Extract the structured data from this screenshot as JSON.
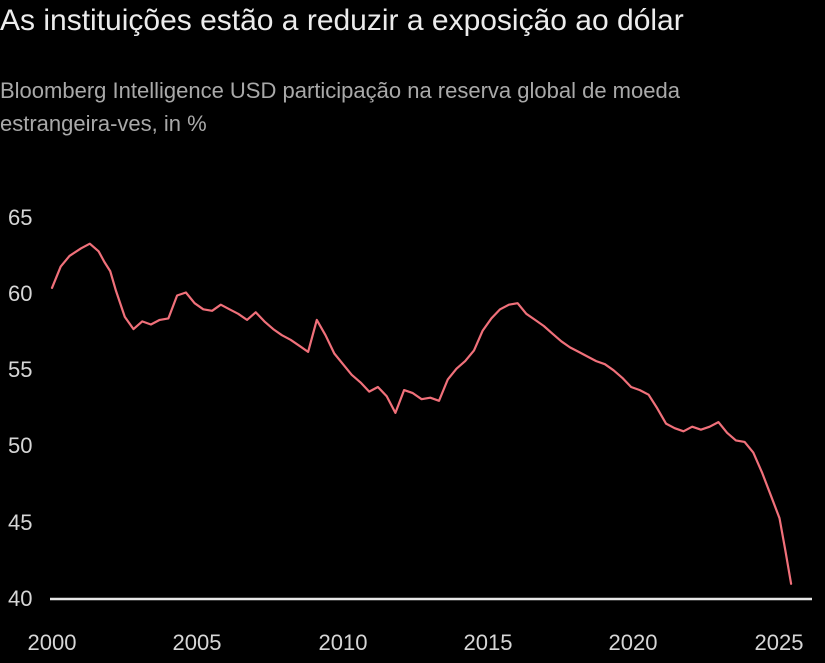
{
  "title": "As instituições estão a reduzir a exposição ao dólar",
  "subtitle": "Bloomberg Intelligence USD participação na reserva global de moeda estrangeira-ves, in %",
  "colors": {
    "background": "#000000",
    "line": "#f0707a",
    "baseline": "#e6e6e6",
    "text": "#d6d6d6"
  },
  "chart_data": {
    "type": "line",
    "title": "As instituições estão a reduzir a exposição ao dólar",
    "subtitle": "Bloomberg Intelligence USD participação na reserva global de moeda estrangeira-ves, in %",
    "xlabel": "",
    "ylabel": "",
    "xlim": [
      2000,
      2025.5
    ],
    "ylim": [
      40,
      65
    ],
    "x_ticks": [
      "2000",
      "2005",
      "2010",
      "2015",
      "2020",
      "2025"
    ],
    "y_ticks": [
      "40",
      "45",
      "50",
      "55",
      "60",
      "65"
    ],
    "grid": false,
    "legend": "none",
    "series": [
      {
        "x": [
          2000.0,
          2000.3,
          2000.6,
          2001.0,
          2001.3,
          2001.6,
          2001.8,
          2002.0,
          2002.2,
          2002.5,
          2002.8,
          2003.1,
          2003.4,
          2003.7,
          2004.0,
          2004.3,
          2004.6,
          2004.9,
          2005.2,
          2005.5,
          2005.8,
          2006.1,
          2006.4,
          2006.7,
          2007.0,
          2007.3,
          2007.6,
          2007.9,
          2008.2,
          2008.5,
          2008.8,
          2009.1,
          2009.4,
          2009.7,
          2010.0,
          2010.3,
          2010.6,
          2010.9,
          2011.2,
          2011.5,
          2011.8,
          2012.1,
          2012.4,
          2012.7,
          2013.0,
          2013.3,
          2013.6,
          2013.9,
          2014.2,
          2014.5,
          2014.8,
          2015.1,
          2015.4,
          2015.7,
          2016.0,
          2016.3,
          2016.6,
          2016.9,
          2017.2,
          2017.5,
          2017.8,
          2018.1,
          2018.4,
          2018.7,
          2019.0,
          2019.3,
          2019.6,
          2019.9,
          2020.2,
          2020.5,
          2020.8,
          2021.1,
          2021.4,
          2021.7,
          2022.0,
          2022.3,
          2022.6,
          2022.9,
          2023.2,
          2023.5,
          2023.8,
          2024.1,
          2024.4,
          2024.7,
          2025.0,
          2025.2,
          2025.4
        ],
        "values": [
          60.4,
          61.8,
          62.5,
          63.0,
          63.3,
          62.8,
          62.1,
          61.5,
          60.2,
          58.5,
          57.7,
          58.2,
          58.0,
          58.3,
          58.4,
          59.9,
          60.1,
          59.4,
          59.0,
          58.9,
          59.3,
          59.0,
          58.7,
          58.3,
          58.8,
          58.2,
          57.7,
          57.3,
          57.0,
          56.6,
          56.2,
          58.3,
          57.3,
          56.1,
          55.4,
          54.7,
          54.2,
          53.6,
          53.9,
          53.3,
          52.2,
          53.7,
          53.5,
          53.1,
          53.2,
          53.0,
          54.4,
          55.1,
          55.6,
          56.3,
          57.6,
          58.4,
          59.0,
          59.3,
          59.4,
          58.7,
          58.3,
          57.9,
          57.4,
          56.9,
          56.5,
          56.2,
          55.9,
          55.6,
          55.4,
          55.0,
          54.5,
          53.9,
          53.7,
          53.4,
          52.5,
          51.5,
          51.2,
          51.0,
          51.3,
          51.1,
          51.3,
          51.6,
          50.9,
          50.4,
          50.3,
          49.6,
          48.3,
          46.8,
          45.3,
          43.2,
          41.0
        ]
      }
    ]
  }
}
